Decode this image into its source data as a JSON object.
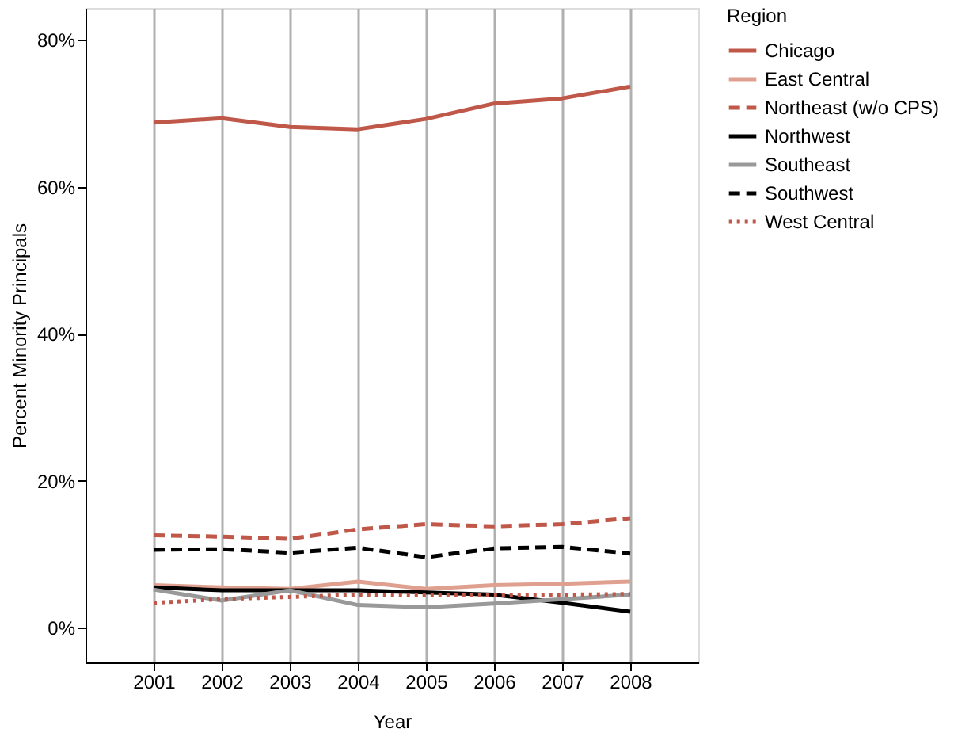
{
  "chart_data": {
    "type": "line",
    "xlabel": "Year",
    "ylabel": "Percent Minority Principals",
    "legend_title": "Region",
    "x": [
      2001,
      2002,
      2003,
      2004,
      2005,
      2006,
      2007,
      2008
    ],
    "xlim": [
      2000,
      2009
    ],
    "xticks": [
      2001,
      2002,
      2003,
      2004,
      2005,
      2006,
      2007,
      2008
    ],
    "ylim": [
      -4.7,
      84.3
    ],
    "yticks": [
      {
        "value": 0,
        "label": "0%"
      },
      {
        "value": 20,
        "label": "20%"
      },
      {
        "value": 40,
        "label": "40%"
      },
      {
        "value": 60,
        "label": "60%"
      },
      {
        "value": 80,
        "label": "80%"
      }
    ],
    "grid": "x",
    "legend": "right",
    "marker": "none",
    "series": [
      {
        "name": "Chicago",
        "color": "#c0584a",
        "line_style": "solid",
        "values": [
          68.7,
          69.3,
          68.1,
          67.8,
          69.2,
          71.3,
          72.0,
          73.6
        ]
      },
      {
        "name": "East Central",
        "color": "#e0a08f",
        "line_style": "solid",
        "values": [
          5.8,
          5.5,
          5.3,
          6.3,
          5.3,
          5.8,
          6.0,
          6.3
        ]
      },
      {
        "name": "Northeast (w/o CPS)",
        "color": "#c0584a",
        "line_style": "dashed",
        "values": [
          12.6,
          12.4,
          12.1,
          13.4,
          14.1,
          13.8,
          14.1,
          14.9
        ]
      },
      {
        "name": "Northwest",
        "color": "#000000",
        "line_style": "solid",
        "values": [
          5.5,
          5.1,
          5.1,
          5.1,
          4.8,
          4.5,
          3.4,
          2.2
        ]
      },
      {
        "name": "Southeast",
        "color": "#999999",
        "line_style": "solid",
        "values": [
          5.2,
          3.7,
          5.1,
          3.1,
          2.8,
          3.3,
          3.9,
          4.5
        ]
      },
      {
        "name": "Southwest",
        "color": "#000000",
        "line_style": "dashed",
        "values": [
          10.6,
          10.7,
          10.2,
          10.9,
          9.6,
          10.8,
          11.0,
          10.1
        ]
      },
      {
        "name": "West Central",
        "color": "#c0584a",
        "line_style": "dotted",
        "values": [
          3.4,
          3.9,
          4.2,
          4.5,
          4.4,
          4.4,
          4.5,
          4.6
        ]
      }
    ]
  }
}
